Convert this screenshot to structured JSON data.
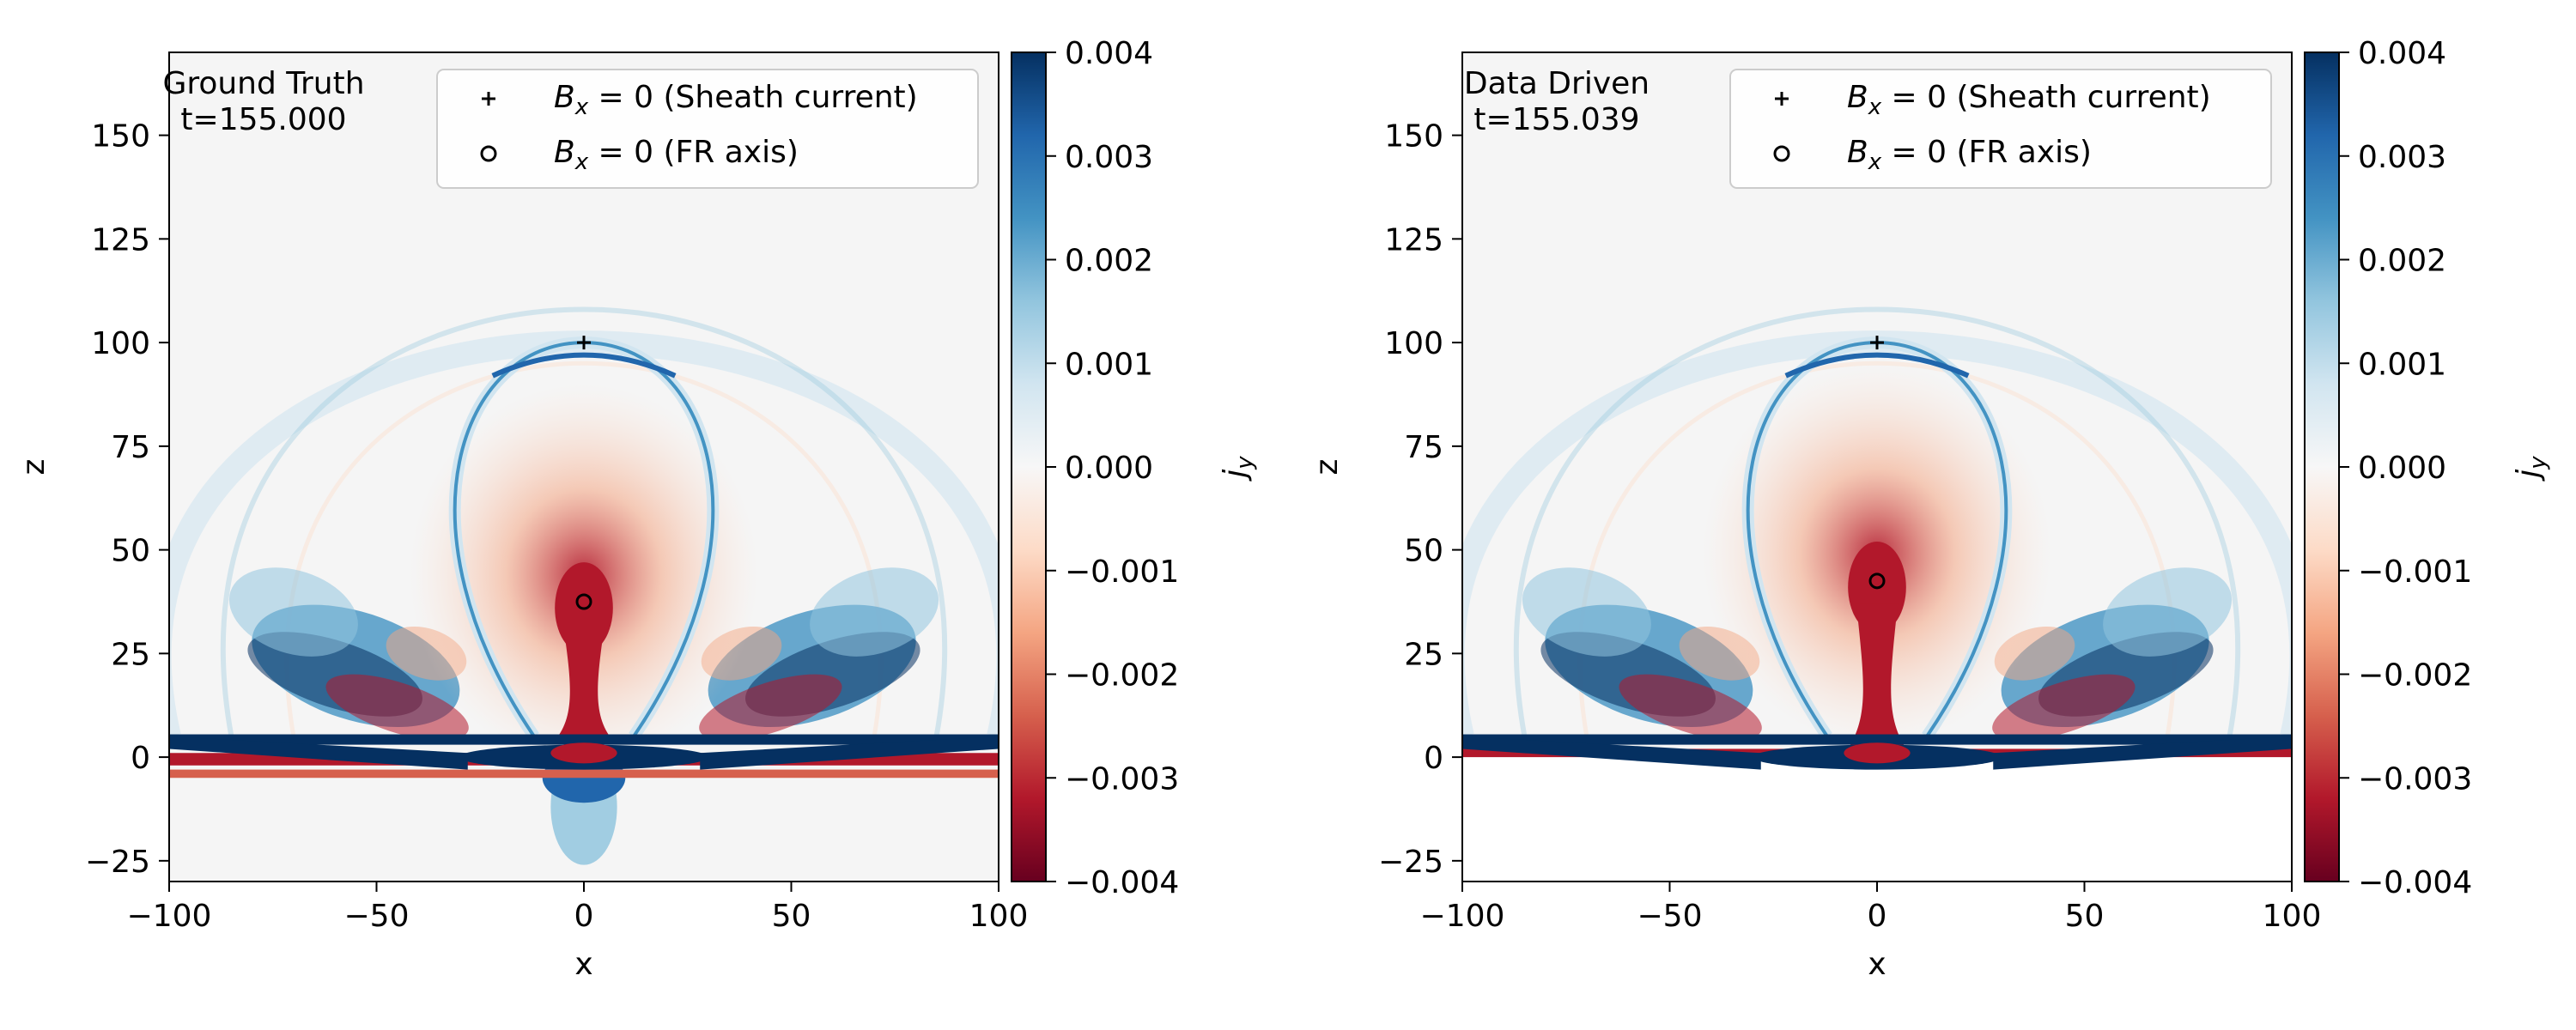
{
  "chart_data": [
    {
      "type": "heatmap",
      "panel_label": "Ground Truth",
      "time_label": "t=155.000",
      "xlabel": "x",
      "ylabel": "z",
      "xlim": [
        -100,
        100
      ],
      "ylim": [
        -30,
        170
      ],
      "xticks": [
        -100,
        -50,
        0,
        50,
        100
      ],
      "yticks": [
        -25,
        0,
        25,
        50,
        75,
        100,
        125,
        150
      ],
      "colorbar": {
        "label": "j_y",
        "label_main": "j",
        "label_sub": "y",
        "vmin": -0.004,
        "vmax": 0.004,
        "ticks": [
          0.004,
          0.003,
          0.002,
          0.001,
          0.0,
          -0.001,
          -0.002,
          -0.003,
          -0.004
        ],
        "tick_labels": [
          "0.004",
          "0.003",
          "0.002",
          "0.001",
          "0.000",
          "−0.001",
          "−0.002",
          "−0.003",
          "−0.004"
        ],
        "colormap": "RdBu",
        "colors": [
          "#67001f",
          "#b2182b",
          "#d6604d",
          "#f4a582",
          "#fddbc7",
          "#f7f7f7",
          "#d1e5f0",
          "#92c5de",
          "#4393c3",
          "#2166ac",
          "#053061"
        ]
      },
      "markers": [
        {
          "symbol": "+",
          "x": 0,
          "z": 100,
          "legend_var": "B",
          "legend_sub": "x",
          "legend_rest": " = 0 (Sheath current)"
        },
        {
          "symbol": "o",
          "x": 0,
          "z": 37.5,
          "legend_var": "B",
          "legend_sub": "x",
          "legend_rest": " = 0 (FR axis)"
        }
      ],
      "field_features": {
        "domain_bottom": -30,
        "sheath_arc": {
          "top_z": 100,
          "half_width": 40,
          "base_z": 5
        },
        "fr_axis_z": 37.5,
        "negative_core": {
          "z_center": 36,
          "stem_to_z": 4
        },
        "floor_band": {
          "z": 0,
          "extends_below": true
        },
        "lower_lobe_z": -12
      }
    },
    {
      "type": "heatmap",
      "panel_label": "Data Driven",
      "time_label": "t=155.039",
      "xlabel": "x",
      "ylabel": "z",
      "xlim": [
        -100,
        100
      ],
      "ylim": [
        -30,
        170
      ],
      "xticks": [
        -100,
        -50,
        0,
        50,
        100
      ],
      "yticks": [
        -25,
        0,
        25,
        50,
        75,
        100,
        125,
        150
      ],
      "colorbar": {
        "label": "j_y",
        "label_main": "j",
        "label_sub": "y",
        "vmin": -0.004,
        "vmax": 0.004,
        "ticks": [
          0.004,
          0.003,
          0.002,
          0.001,
          0.0,
          -0.001,
          -0.002,
          -0.003,
          -0.004
        ],
        "tick_labels": [
          "0.004",
          "0.003",
          "0.002",
          "0.001",
          "0.000",
          "−0.001",
          "−0.002",
          "−0.003",
          "−0.004"
        ],
        "colormap": "RdBu",
        "colors": [
          "#67001f",
          "#b2182b",
          "#d6604d",
          "#f4a582",
          "#fddbc7",
          "#f7f7f7",
          "#d1e5f0",
          "#92c5de",
          "#4393c3",
          "#2166ac",
          "#053061"
        ]
      },
      "markers": [
        {
          "symbol": "+",
          "x": 0,
          "z": 100,
          "legend_var": "B",
          "legend_sub": "x",
          "legend_rest": " = 0 (Sheath current)"
        },
        {
          "symbol": "o",
          "x": 0,
          "z": 42.5,
          "legend_var": "B",
          "legend_sub": "x",
          "legend_rest": " = 0 (FR axis)"
        }
      ],
      "field_features": {
        "domain_bottom": 0,
        "sheath_arc": {
          "top_z": 100,
          "half_width": 40,
          "base_z": 5
        },
        "fr_axis_z": 42.5,
        "negative_core": {
          "z_center": 41,
          "stem_to_z": 2
        },
        "floor_band": {
          "z": 0,
          "extends_below": false
        },
        "lower_lobe_z": null
      }
    }
  ]
}
